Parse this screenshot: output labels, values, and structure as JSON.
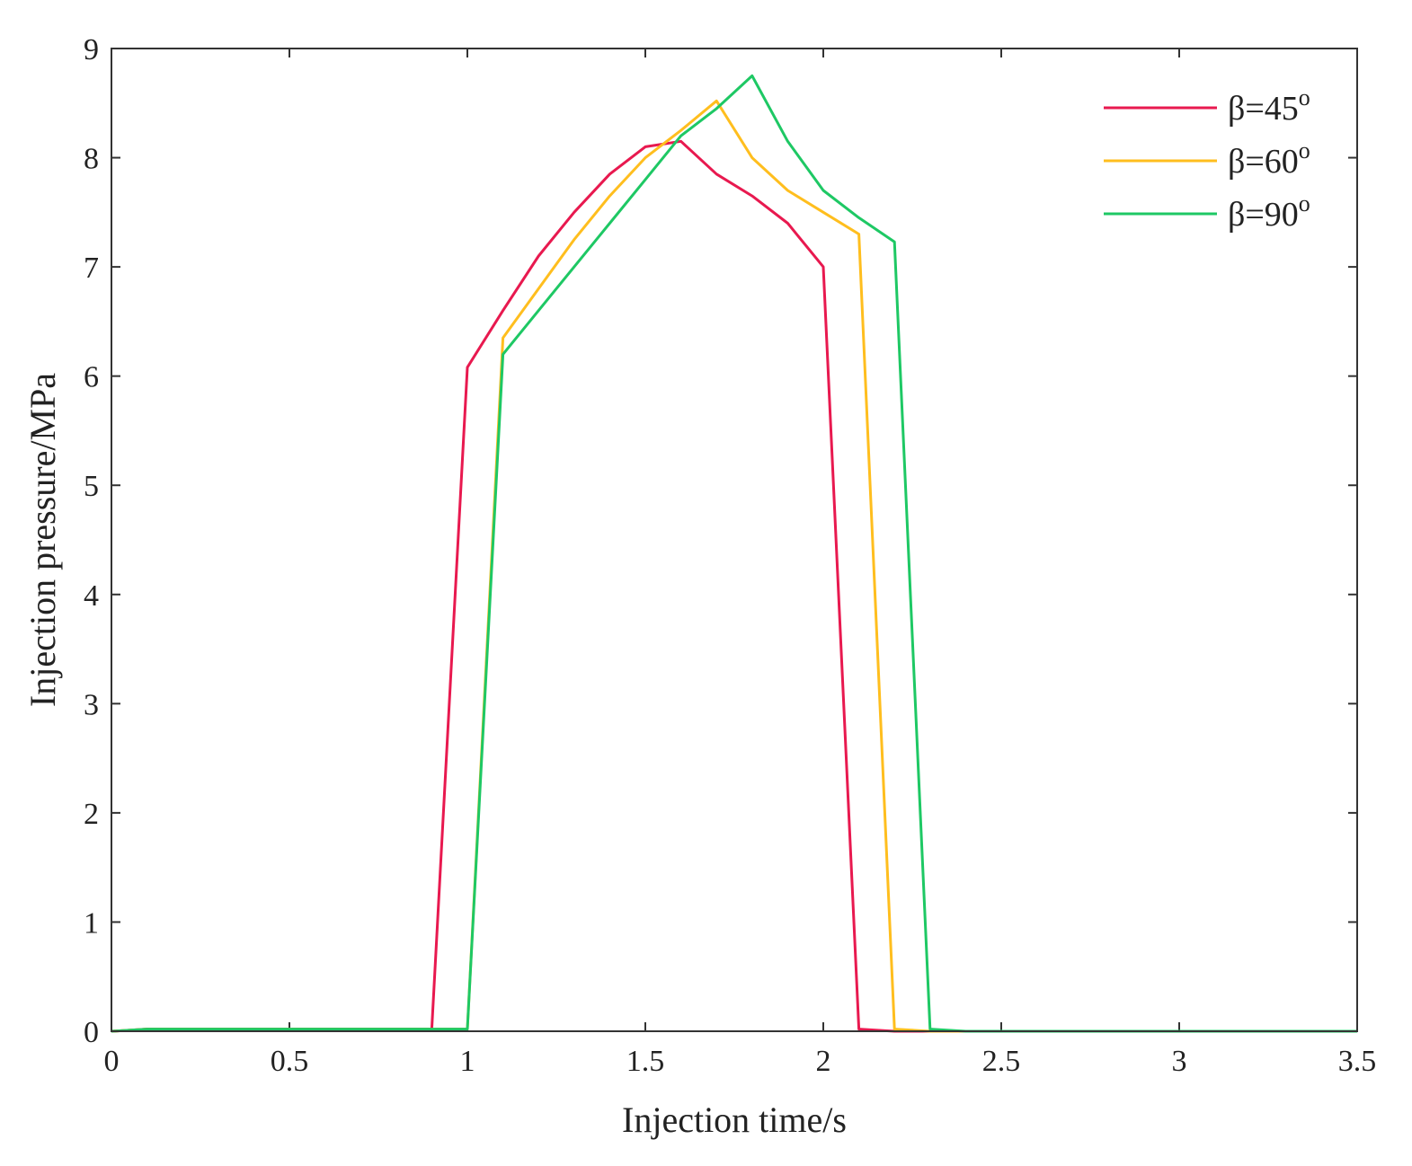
{
  "chart_data": {
    "type": "line",
    "xlabel": "Injection time/s",
    "ylabel": "Injection pressure/MPa",
    "xlim": [
      0,
      3.5
    ],
    "ylim": [
      0,
      9
    ],
    "xticks": [
      0,
      0.5,
      1,
      1.5,
      2,
      2.5,
      3,
      3.5
    ],
    "xtick_labels": [
      "0",
      "0.5",
      "1",
      "1.5",
      "2",
      "2.5",
      "3",
      "3.5"
    ],
    "yticks": [
      0,
      1,
      2,
      3,
      4,
      5,
      6,
      7,
      8,
      9
    ],
    "ytick_labels": [
      "0",
      "1",
      "2",
      "3",
      "4",
      "5",
      "6",
      "7",
      "8",
      "9"
    ],
    "grid": false,
    "legend_position": "top-right",
    "series": [
      {
        "name_prefix": "β=45",
        "name_sup": "o",
        "color": "#e8194f",
        "x": [
          0,
          0.1,
          0.2,
          0.3,
          0.4,
          0.5,
          0.6,
          0.7,
          0.8,
          0.9,
          1.0,
          1.1,
          1.2,
          1.3,
          1.4,
          1.5,
          1.6,
          1.7,
          1.8,
          1.9,
          2.0,
          2.1,
          2.2,
          2.3,
          2.4,
          2.5,
          3.0,
          3.5
        ],
        "y": [
          0,
          0.02,
          0.02,
          0.02,
          0.02,
          0.02,
          0.02,
          0.02,
          0.02,
          0.02,
          6.08,
          6.6,
          7.1,
          7.5,
          7.85,
          8.1,
          8.15,
          7.85,
          7.65,
          7.4,
          7.0,
          0.02,
          0.0,
          0.0,
          0.0,
          0.0,
          0.0,
          0.0
        ]
      },
      {
        "name_prefix": "β=60",
        "name_sup": "o",
        "color": "#ffbe1e",
        "x": [
          0,
          0.1,
          0.2,
          0.3,
          0.4,
          0.5,
          0.6,
          0.7,
          0.8,
          0.9,
          1.0,
          1.1,
          1.2,
          1.3,
          1.4,
          1.5,
          1.6,
          1.7,
          1.8,
          1.9,
          2.0,
          2.1,
          2.2,
          2.3,
          2.4,
          2.5,
          3.0,
          3.5
        ],
        "y": [
          0,
          0.02,
          0.02,
          0.02,
          0.02,
          0.02,
          0.02,
          0.02,
          0.02,
          0.02,
          0.02,
          6.35,
          6.8,
          7.25,
          7.65,
          8.0,
          8.25,
          8.52,
          8.0,
          7.7,
          7.5,
          7.3,
          0.02,
          0.0,
          0.0,
          0.0,
          0.0,
          0.0
        ]
      },
      {
        "name_prefix": "β=90",
        "name_sup": "o",
        "color": "#1ec864",
        "x": [
          0,
          0.1,
          0.2,
          0.3,
          0.4,
          0.5,
          0.6,
          0.7,
          0.8,
          0.9,
          1.0,
          1.1,
          1.2,
          1.3,
          1.4,
          1.5,
          1.6,
          1.7,
          1.8,
          1.9,
          2.0,
          2.1,
          2.2,
          2.3,
          2.4,
          2.5,
          3.0,
          3.5
        ],
        "y": [
          0,
          0.02,
          0.02,
          0.02,
          0.02,
          0.02,
          0.02,
          0.02,
          0.02,
          0.02,
          0.02,
          6.2,
          6.6,
          7.0,
          7.4,
          7.8,
          8.2,
          8.45,
          8.75,
          8.15,
          7.7,
          7.45,
          7.23,
          0.02,
          0.0,
          0.0,
          0.0,
          0.0
        ]
      }
    ]
  }
}
